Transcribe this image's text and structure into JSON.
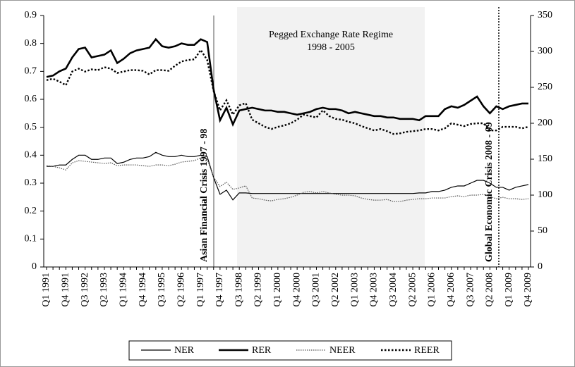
{
  "chart_data": {
    "type": "line",
    "categories": [
      "Q1 1991",
      null,
      null,
      "Q4 1991",
      null,
      null,
      "Q3 1992",
      null,
      null,
      "Q2 1993",
      null,
      null,
      "Q1 1994",
      null,
      null,
      "Q4 1994",
      null,
      null,
      "Q3 1995",
      null,
      null,
      "Q2 1996",
      null,
      null,
      "Q1 1997",
      null,
      null,
      "Q4 1997",
      null,
      null,
      "Q3 1998",
      null,
      null,
      "Q2 1999",
      null,
      null,
      "Q1 2000",
      null,
      null,
      "Q4 2000",
      null,
      null,
      "Q3 2001",
      null,
      null,
      "Q2 2002",
      null,
      null,
      "Q1 2003",
      null,
      null,
      "Q4 2003",
      null,
      null,
      "Q3 2004",
      null,
      null,
      "Q2 2005",
      null,
      null,
      "Q1 2006",
      null,
      null,
      "Q4 2006",
      null,
      null,
      "Q3 2007",
      null,
      null,
      "Q2 2008",
      null,
      null,
      "Q1 2009",
      null,
      null,
      "Q4 2009"
    ],
    "ylim": [
      0,
      0.9
    ],
    "yticks": [
      0,
      0.1,
      0.2,
      0.3,
      0.4,
      0.5,
      0.6,
      0.7,
      0.8,
      0.9
    ],
    "y2lim": [
      0,
      350
    ],
    "y2ticks": [
      0,
      50,
      100,
      150,
      200,
      250,
      300,
      350
    ],
    "annotations": [
      "Pegged Exchange Rate Regime",
      "1998 - 2005",
      "Asian  Financial Crisis 1997 - 98",
      "Global Economic Crisis  2008 - 09"
    ],
    "series": [
      {
        "name": "NER",
        "color": "#000000",
        "width": 1.2,
        "dash": "none",
        "axis": "y",
        "values": [
          0.36,
          0.36,
          0.365,
          0.365,
          0.385,
          0.4,
          0.4,
          0.385,
          0.385,
          0.39,
          0.39,
          0.37,
          0.375,
          0.385,
          0.39,
          0.39,
          0.395,
          0.41,
          0.4,
          0.395,
          0.395,
          0.4,
          0.395,
          0.395,
          0.4,
          0.395,
          0.32,
          0.26,
          0.275,
          0.24,
          0.265,
          0.265,
          0.263,
          0.263,
          0.263,
          0.263,
          0.263,
          0.263,
          0.263,
          0.263,
          0.263,
          0.263,
          0.263,
          0.263,
          0.263,
          0.263,
          0.263,
          0.263,
          0.263,
          0.263,
          0.263,
          0.263,
          0.263,
          0.263,
          0.263,
          0.263,
          0.263,
          0.263,
          0.265,
          0.265,
          0.27,
          0.27,
          0.275,
          0.285,
          0.29,
          0.29,
          0.3,
          0.31,
          0.31,
          0.3,
          0.285,
          0.285,
          0.275,
          0.285,
          0.29,
          0.295
        ]
      },
      {
        "name": "RER",
        "color": "#000000",
        "width": 2.6,
        "dash": "none",
        "axis": "y",
        "values": [
          0.68,
          0.685,
          0.7,
          0.71,
          0.75,
          0.78,
          0.785,
          0.75,
          0.755,
          0.76,
          0.775,
          0.73,
          0.745,
          0.765,
          0.775,
          0.78,
          0.785,
          0.815,
          0.79,
          0.785,
          0.79,
          0.8,
          0.795,
          0.795,
          0.815,
          0.805,
          0.635,
          0.525,
          0.57,
          0.51,
          0.56,
          0.565,
          0.57,
          0.565,
          0.56,
          0.56,
          0.555,
          0.555,
          0.55,
          0.545,
          0.55,
          0.555,
          0.565,
          0.57,
          0.565,
          0.565,
          0.56,
          0.55,
          0.555,
          0.55,
          0.545,
          0.54,
          0.54,
          0.535,
          0.535,
          0.53,
          0.53,
          0.53,
          0.525,
          0.54,
          0.54,
          0.54,
          0.565,
          0.575,
          0.57,
          0.58,
          0.595,
          0.61,
          0.575,
          0.55,
          0.575,
          0.565,
          0.575,
          0.58,
          0.585,
          0.585
        ]
      },
      {
        "name": "NEER",
        "color": "#555555",
        "width": 1.2,
        "dash": "1.5 1.5",
        "axis": "y2",
        "values": [
          141,
          140,
          138,
          135,
          145,
          148,
          147,
          146,
          145,
          144,
          145,
          141,
          142,
          142,
          142,
          141,
          140,
          142,
          142,
          141,
          143,
          146,
          147,
          148,
          152,
          150,
          125,
          112,
          118,
          108,
          110,
          113,
          96,
          95,
          93,
          92,
          94,
          95,
          97,
          100,
          104,
          105,
          103,
          105,
          103,
          101,
          100,
          100,
          99,
          96,
          94,
          93,
          93,
          94,
          91,
          91,
          93,
          94,
          95,
          95,
          96,
          96,
          96,
          98,
          99,
          98,
          100,
          100,
          101,
          98,
          95,
          97,
          95,
          95,
          94,
          95
        ]
      },
      {
        "name": "REER",
        "color": "#000000",
        "width": 2.4,
        "dash": "2.5 2.5",
        "axis": "y2",
        "values": [
          260,
          262,
          258,
          253,
          272,
          276,
          272,
          275,
          274,
          278,
          276,
          270,
          272,
          274,
          274,
          273,
          268,
          274,
          274,
          273,
          280,
          286,
          288,
          289,
          302,
          288,
          245,
          218,
          232,
          212,
          225,
          228,
          205,
          200,
          195,
          192,
          195,
          197,
          200,
          205,
          212,
          210,
          208,
          218,
          210,
          206,
          205,
          202,
          200,
          196,
          193,
          190,
          192,
          189,
          185,
          186,
          188,
          189,
          190,
          192,
          192,
          190,
          193,
          200,
          198,
          196,
          199,
          200,
          200,
          190,
          190,
          195,
          195,
          195,
          193,
          195
        ]
      }
    ]
  }
}
